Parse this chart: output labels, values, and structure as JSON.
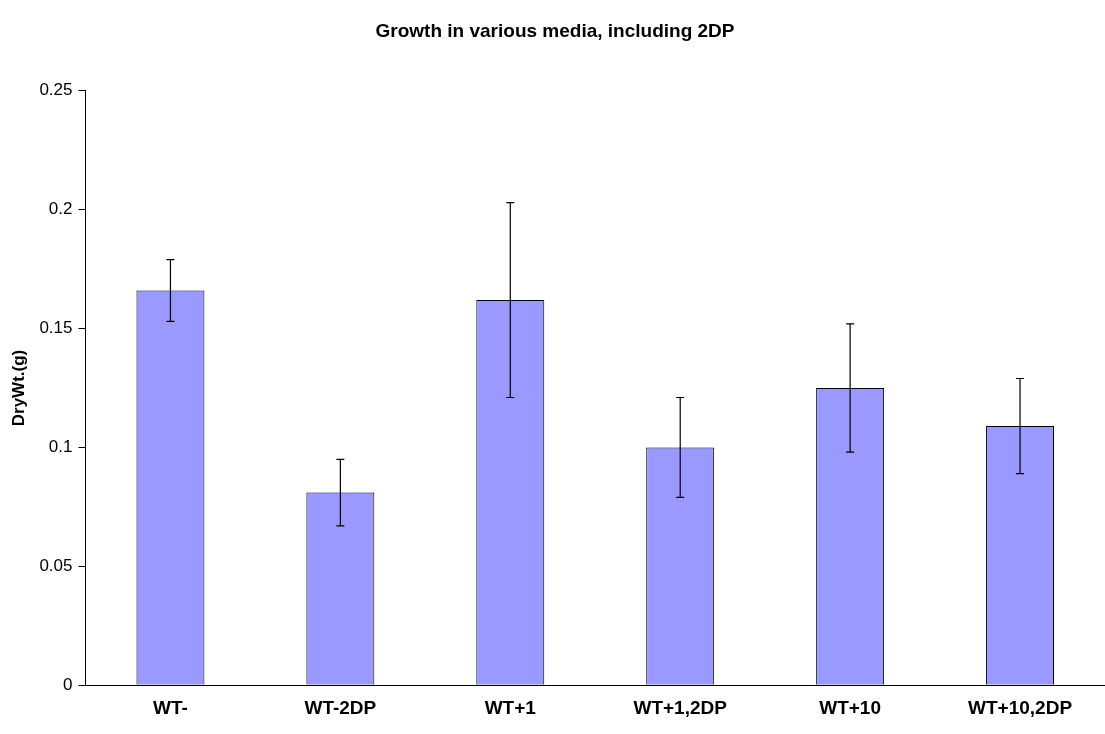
{
  "chart_data": {
    "type": "bar",
    "title": "Growth in various media, including 2DP",
    "ylabel": "DryWt.(g)",
    "categories": [
      "WT-",
      "WT-2DP",
      "WT+1",
      "WT+1,2DP",
      "WT+10",
      "WT+10,2DP"
    ],
    "values": [
      0.166,
      0.081,
      0.162,
      0.1,
      0.125,
      0.109
    ],
    "errors": [
      [
        0.153,
        0.179
      ],
      [
        0.067,
        0.095
      ],
      [
        0.121,
        0.203
      ],
      [
        0.079,
        0.121
      ],
      [
        0.098,
        0.152
      ],
      [
        0.089,
        0.129
      ]
    ],
    "color": "#9999ff",
    "ylim": [
      0,
      0.25
    ],
    "yticks": [
      0,
      0.05,
      0.1,
      0.15,
      0.2,
      0.25
    ],
    "grid": false,
    "legend": false
  }
}
